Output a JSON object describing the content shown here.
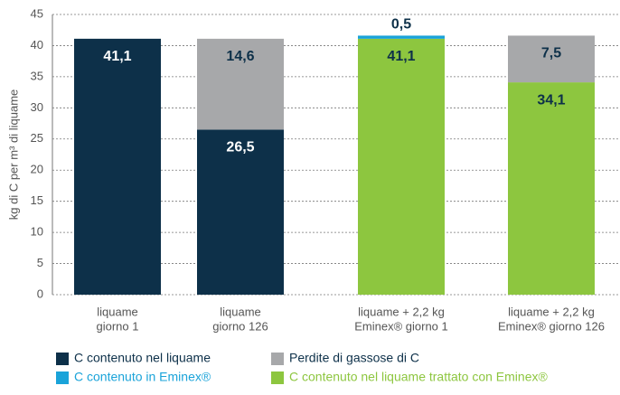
{
  "chart_data": {
    "type": "stacked-bar",
    "y_label": "kg di C per m³ di liquame",
    "categories": [
      [
        "liquame",
        "giorno 1"
      ],
      [
        "liquame",
        "giorno 126"
      ],
      [
        "liquame + 2,2 kg",
        "Eminex® giorno 1"
      ],
      [
        "liquame + 2,2 kg",
        "Eminex® giorno 126"
      ]
    ],
    "series": [
      {
        "name": "C contenuto nel liquame",
        "color": "#0d3049",
        "values": [
          41.1,
          26.5,
          null,
          null
        ],
        "value_labels": [
          "41,1",
          "26,5",
          null,
          null
        ]
      },
      {
        "name": "Perdite di gassose di C",
        "color": "#a7a8aa",
        "values": [
          null,
          14.6,
          null,
          7.5
        ],
        "value_labels": [
          null,
          "14,6",
          null,
          "7,5"
        ]
      },
      {
        "name": "C contenuto in Eminex®",
        "color": "#1aa3d9",
        "values": [
          null,
          null,
          0.5,
          null
        ],
        "value_labels": [
          null,
          null,
          "0,5",
          null
        ]
      },
      {
        "name": "C contenuto nel liquame trattato con Eminex®",
        "color": "#8dc63f",
        "values": [
          null,
          null,
          41.1,
          34.1
        ],
        "value_labels": [
          null,
          null,
          "41,1",
          "34,1"
        ]
      }
    ],
    "ylim": [
      0,
      45
    ],
    "yticks": [
      0,
      5,
      10,
      15,
      20,
      25,
      30,
      35,
      40,
      45
    ],
    "grid": true
  }
}
